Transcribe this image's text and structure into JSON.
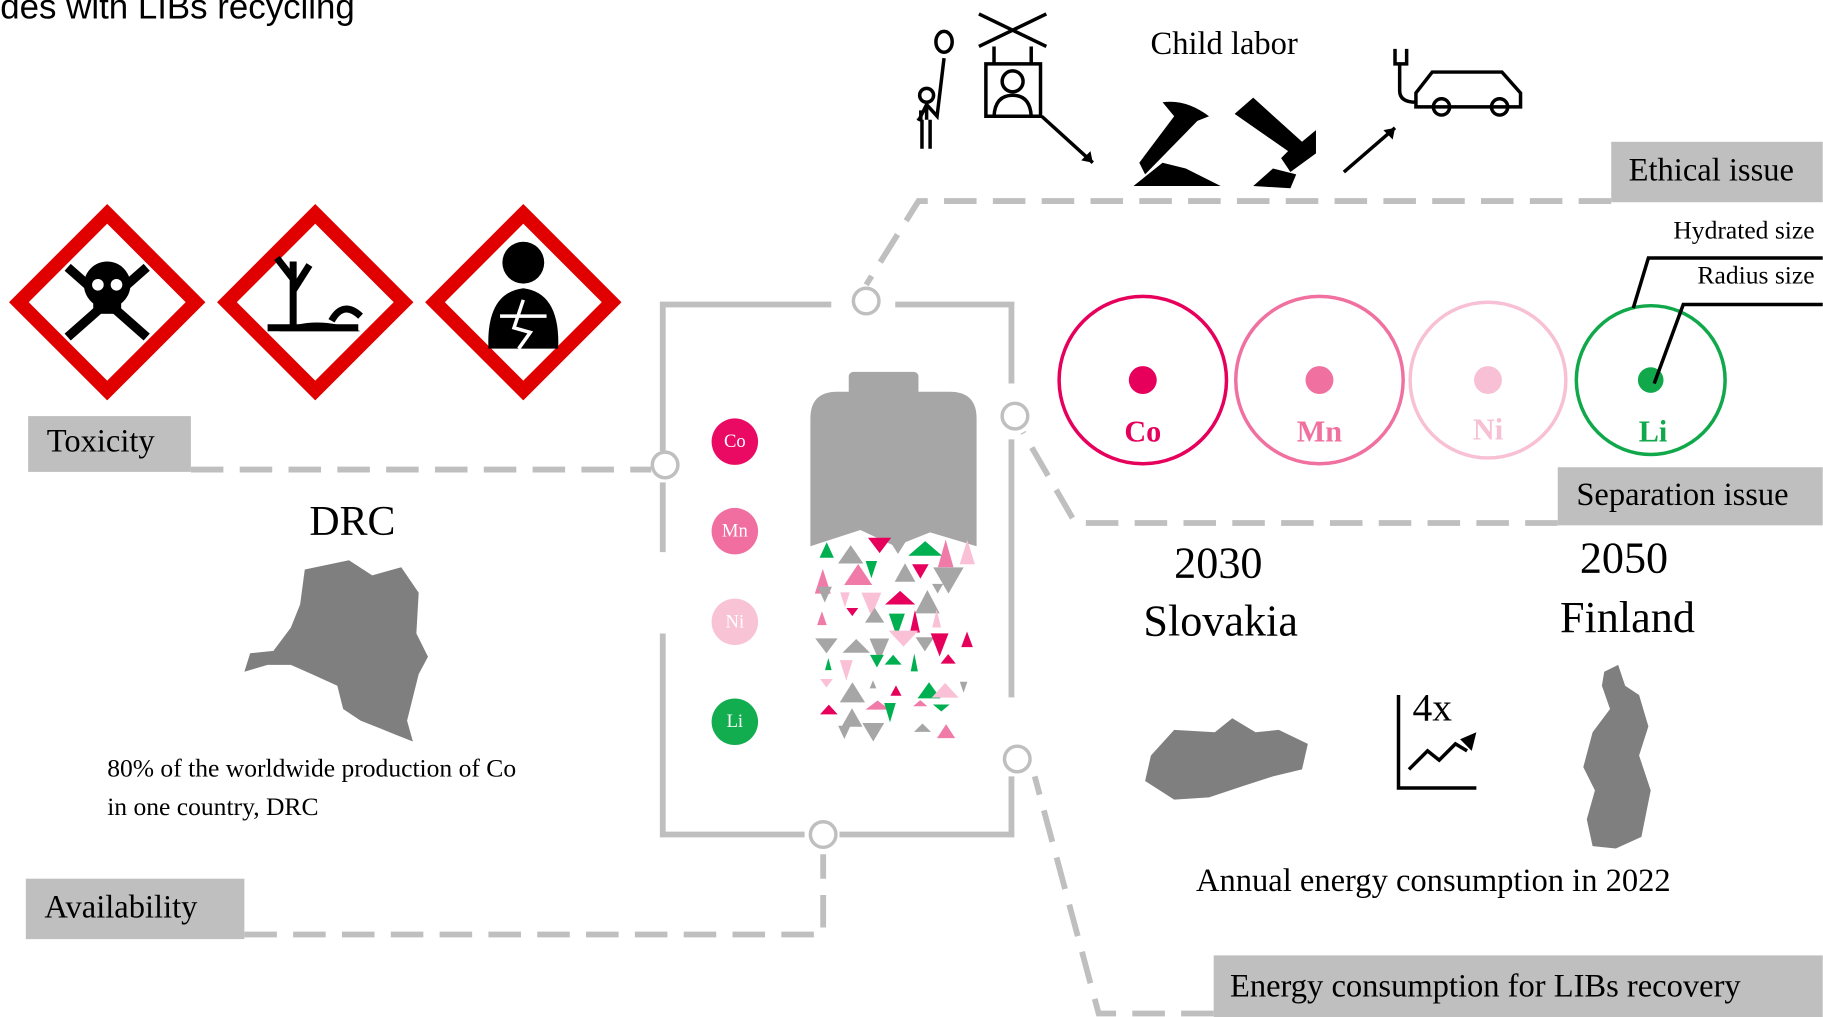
{
  "title": "des with LIBs recycling",
  "issues": {
    "toxicity": "Toxicity",
    "ethical": "Ethical issue",
    "separation": "Separation issue",
    "availability": "Availability",
    "energy": "Energy consumption for LIBs recovery"
  },
  "ethical": {
    "caption": "Child labor"
  },
  "separation": {
    "hydrated": "Hydrated size",
    "radius": "Radius size",
    "ions": [
      "Co",
      "Mn",
      "Ni",
      "Li"
    ]
  },
  "battery": {
    "elements": [
      "Co",
      "Mn",
      "Ni",
      "Li"
    ]
  },
  "availability": {
    "country": "DRC",
    "caption": [
      "80% of the worldwide production of Co",
      "in one country, DRC"
    ]
  },
  "energy": {
    "left": {
      "year": "2030",
      "country": "Slovakia"
    },
    "right": {
      "year": "2050",
      "country": "Finland"
    },
    "factor": "4x",
    "caption": "Annual energy consumption in 2022"
  }
}
